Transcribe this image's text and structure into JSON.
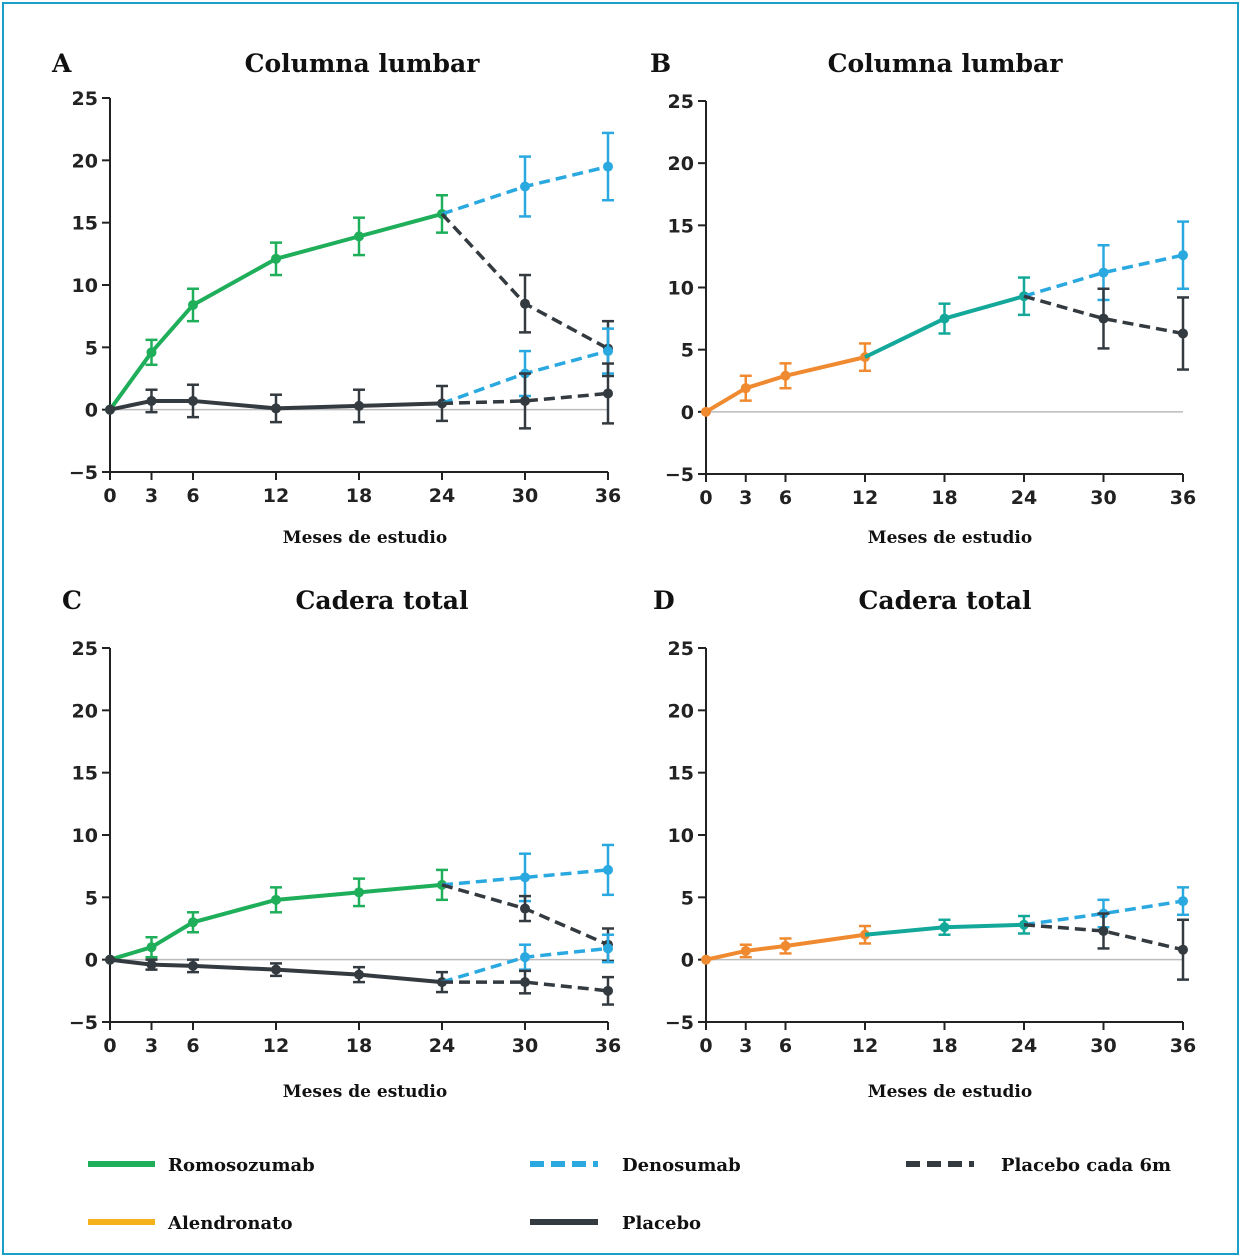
{
  "colors": {
    "romosozumab": "#1fae5a",
    "alendronato_line": "#f08a30",
    "alendronato_legend": "#f5b21a",
    "teal": "#13a89a",
    "denosumab": "#2aa9e0",
    "placebo": "#333a40",
    "frame": "#1aa0c8",
    "zero_line": "#bbbbbb"
  },
  "legend": {
    "romosozumab": "Romosozumab",
    "denosumab": "Denosumab",
    "placebo6m": "Placebo cada 6m",
    "alendronato": "Alendronato",
    "placebo": "Placebo"
  },
  "chart_data": [
    {
      "panel": "A",
      "type": "line",
      "title": "Columna lumbar",
      "xlabel": "Meses de estudio",
      "ylabel": "",
      "x_ticks": [
        0,
        3,
        6,
        12,
        18,
        24,
        30,
        36
      ],
      "y_ticks": [
        -5,
        0,
        5,
        10,
        15,
        20,
        25
      ],
      "ylim": [
        -5,
        25
      ],
      "xlim": [
        0,
        36
      ],
      "series": [
        {
          "name": "Romosozumab",
          "style": "romosozumab",
          "dash": false,
          "points": [
            {
              "x": 0,
              "y": 0,
              "err": 0
            },
            {
              "x": 3,
              "y": 4.6,
              "err": 1.0
            },
            {
              "x": 6,
              "y": 8.4,
              "err": 1.3
            },
            {
              "x": 12,
              "y": 12.1,
              "err": 1.3
            },
            {
              "x": 18,
              "y": 13.9,
              "err": 1.5
            },
            {
              "x": 24,
              "y": 15.7,
              "err": 1.5
            }
          ]
        },
        {
          "name": "Denosumab",
          "style": "denosumab",
          "dash": true,
          "points": [
            {
              "x": 24,
              "y": 15.7,
              "err": 0
            },
            {
              "x": 30,
              "y": 17.9,
              "err": 2.4
            },
            {
              "x": 36,
              "y": 19.5,
              "err": 2.7
            }
          ]
        },
        {
          "name": "Placebo cada 6m",
          "style": "placebo",
          "dash": true,
          "points": [
            {
              "x": 24,
              "y": 15.7,
              "err": 0
            },
            {
              "x": 30,
              "y": 8.5,
              "err": 2.3
            },
            {
              "x": 36,
              "y": 4.9,
              "err": 2.2
            }
          ]
        },
        {
          "name": "Placebo",
          "style": "placebo",
          "dash": false,
          "points": [
            {
              "x": 0,
              "y": 0,
              "err": 0
            },
            {
              "x": 3,
              "y": 0.7,
              "err": 0.9
            },
            {
              "x": 6,
              "y": 0.7,
              "err": 1.3
            },
            {
              "x": 12,
              "y": 0.1,
              "err": 1.1
            },
            {
              "x": 18,
              "y": 0.3,
              "err": 1.3
            },
            {
              "x": 24,
              "y": 0.5,
              "err": 1.4
            }
          ]
        },
        {
          "name": "Denosumab",
          "style": "denosumab",
          "dash": true,
          "points": [
            {
              "x": 24,
              "y": 0.5,
              "err": 0
            },
            {
              "x": 30,
              "y": 2.9,
              "err": 1.8
            },
            {
              "x": 36,
              "y": 4.7,
              "err": 1.8
            }
          ]
        },
        {
          "name": "Placebo cada 6m",
          "style": "placebo",
          "dash": true,
          "points": [
            {
              "x": 24,
              "y": 0.5,
              "err": 0
            },
            {
              "x": 30,
              "y": 0.7,
              "err": 2.2
            },
            {
              "x": 36,
              "y": 1.3,
              "err": 2.4
            }
          ]
        }
      ]
    },
    {
      "panel": "B",
      "type": "line",
      "title": "Columna lumbar",
      "xlabel": "Meses de estudio",
      "ylabel": "",
      "x_ticks": [
        0,
        3,
        6,
        12,
        18,
        24,
        30,
        36
      ],
      "y_ticks": [
        -5,
        0,
        5,
        10,
        15,
        20,
        25
      ],
      "ylim": [
        -5,
        25
      ],
      "xlim": [
        0,
        36
      ],
      "series": [
        {
          "name": "Alendronato",
          "style": "alendronato_line",
          "dash": false,
          "points": [
            {
              "x": 0,
              "y": 0,
              "err": 0
            },
            {
              "x": 3,
              "y": 1.9,
              "err": 1.0
            },
            {
              "x": 6,
              "y": 2.9,
              "err": 1.0
            },
            {
              "x": 12,
              "y": 4.4,
              "err": 1.1
            }
          ]
        },
        {
          "name": "Alendronato",
          "style": "teal",
          "dash": false,
          "points": [
            {
              "x": 12,
              "y": 4.4,
              "err": 0
            },
            {
              "x": 18,
              "y": 7.5,
              "err": 1.2
            },
            {
              "x": 24,
              "y": 9.3,
              "err": 1.5
            }
          ]
        },
        {
          "name": "Denosumab",
          "style": "denosumab",
          "dash": true,
          "points": [
            {
              "x": 24,
              "y": 9.3,
              "err": 0
            },
            {
              "x": 30,
              "y": 11.2,
              "err": 2.2
            },
            {
              "x": 36,
              "y": 12.6,
              "err": 2.7
            }
          ]
        },
        {
          "name": "Placebo cada 6m",
          "style": "placebo",
          "dash": true,
          "points": [
            {
              "x": 24,
              "y": 9.3,
              "err": 0
            },
            {
              "x": 30,
              "y": 7.5,
              "err": 2.4
            },
            {
              "x": 36,
              "y": 6.3,
              "err": 2.9
            }
          ]
        }
      ]
    },
    {
      "panel": "C",
      "type": "line",
      "title": "Cadera total",
      "xlabel": "Meses de estudio",
      "ylabel": "",
      "x_ticks": [
        0,
        3,
        6,
        12,
        18,
        24,
        30,
        36
      ],
      "y_ticks": [
        -5,
        0,
        5,
        10,
        15,
        20,
        25
      ],
      "ylim": [
        -5,
        25
      ],
      "xlim": [
        0,
        36
      ],
      "series": [
        {
          "name": "Romosozumab",
          "style": "romosozumab",
          "dash": false,
          "points": [
            {
              "x": 0,
              "y": 0,
              "err": 0
            },
            {
              "x": 3,
              "y": 1.0,
              "err": 0.8
            },
            {
              "x": 6,
              "y": 3.0,
              "err": 0.8
            },
            {
              "x": 12,
              "y": 4.8,
              "err": 1.0
            },
            {
              "x": 18,
              "y": 5.4,
              "err": 1.1
            },
            {
              "x": 24,
              "y": 6.0,
              "err": 1.2
            }
          ]
        },
        {
          "name": "Denosumab",
          "style": "denosumab",
          "dash": true,
          "points": [
            {
              "x": 24,
              "y": 6.0,
              "err": 0
            },
            {
              "x": 30,
              "y": 6.6,
              "err": 1.9
            },
            {
              "x": 36,
              "y": 7.2,
              "err": 2.0
            }
          ]
        },
        {
          "name": "Placebo cada 6m",
          "style": "placebo",
          "dash": true,
          "points": [
            {
              "x": 24,
              "y": 6.0,
              "err": 0
            },
            {
              "x": 30,
              "y": 4.1,
              "err": 1.0
            },
            {
              "x": 36,
              "y": 1.2,
              "err": 1.3
            }
          ]
        },
        {
          "name": "Placebo",
          "style": "placebo",
          "dash": false,
          "points": [
            {
              "x": 0,
              "y": 0,
              "err": 0
            },
            {
              "x": 3,
              "y": -0.4,
              "err": 0.4
            },
            {
              "x": 6,
              "y": -0.5,
              "err": 0.5
            },
            {
              "x": 12,
              "y": -0.8,
              "err": 0.5
            },
            {
              "x": 18,
              "y": -1.2,
              "err": 0.6
            },
            {
              "x": 24,
              "y": -1.8,
              "err": 0.8
            }
          ]
        },
        {
          "name": "Denosumab",
          "style": "denosumab",
          "dash": true,
          "points": [
            {
              "x": 24,
              "y": -1.8,
              "err": 0
            },
            {
              "x": 30,
              "y": 0.2,
              "err": 1.0
            },
            {
              "x": 36,
              "y": 0.9,
              "err": 1.1
            }
          ]
        },
        {
          "name": "Placebo cada 6m",
          "style": "placebo",
          "dash": true,
          "points": [
            {
              "x": 24,
              "y": -1.8,
              "err": 0
            },
            {
              "x": 30,
              "y": -1.8,
              "err": 0.9
            },
            {
              "x": 36,
              "y": -2.5,
              "err": 1.1
            }
          ]
        }
      ]
    },
    {
      "panel": "D",
      "type": "line",
      "title": "Cadera total",
      "xlabel": "Meses de estudio",
      "ylabel": "",
      "x_ticks": [
        0,
        3,
        6,
        12,
        18,
        24,
        30,
        36
      ],
      "y_ticks": [
        -5,
        0,
        5,
        10,
        15,
        20,
        25
      ],
      "ylim": [
        -5,
        25
      ],
      "xlim": [
        0,
        36
      ],
      "series": [
        {
          "name": "Alendronato",
          "style": "alendronato_line",
          "dash": false,
          "points": [
            {
              "x": 0,
              "y": 0,
              "err": 0
            },
            {
              "x": 3,
              "y": 0.7,
              "err": 0.5
            },
            {
              "x": 6,
              "y": 1.1,
              "err": 0.6
            },
            {
              "x": 12,
              "y": 2.0,
              "err": 0.7
            }
          ]
        },
        {
          "name": "Alendronato",
          "style": "teal",
          "dash": false,
          "points": [
            {
              "x": 12,
              "y": 2.0,
              "err": 0
            },
            {
              "x": 18,
              "y": 2.6,
              "err": 0.6
            },
            {
              "x": 24,
              "y": 2.8,
              "err": 0.7
            }
          ]
        },
        {
          "name": "Denosumab",
          "style": "denosumab",
          "dash": true,
          "points": [
            {
              "x": 24,
              "y": 2.8,
              "err": 0
            },
            {
              "x": 30,
              "y": 3.7,
              "err": 1.1
            },
            {
              "x": 36,
              "y": 4.7,
              "err": 1.1
            }
          ]
        },
        {
          "name": "Placebo cada 6m",
          "style": "placebo",
          "dash": true,
          "points": [
            {
              "x": 24,
              "y": 2.8,
              "err": 0
            },
            {
              "x": 30,
              "y": 2.3,
              "err": 1.4
            },
            {
              "x": 36,
              "y": 0.8,
              "err": 2.4
            }
          ]
        }
      ]
    }
  ]
}
